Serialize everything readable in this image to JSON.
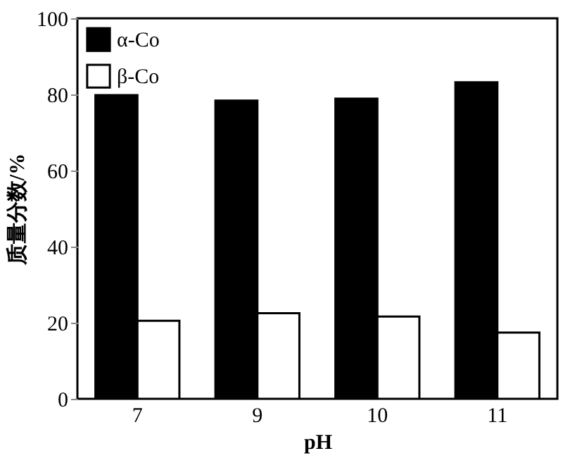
{
  "chart_data": {
    "type": "bar",
    "xlabel": "pH",
    "ylabel": "质量分数/%",
    "categories": [
      "7",
      "9",
      "10",
      "11"
    ],
    "series": [
      {
        "name": "α-Co",
        "color": "#000000",
        "values": [
          79.8,
          78.4,
          78.9,
          83.2
        ]
      },
      {
        "name": "β-Co",
        "color": "#ffffff",
        "values": [
          20.5,
          22.5,
          21.6,
          17.4
        ]
      }
    ],
    "ylim": [
      0,
      100
    ],
    "yticks": [
      0,
      20,
      40,
      60,
      80,
      100
    ],
    "grid": false,
    "legend": "top left"
  }
}
